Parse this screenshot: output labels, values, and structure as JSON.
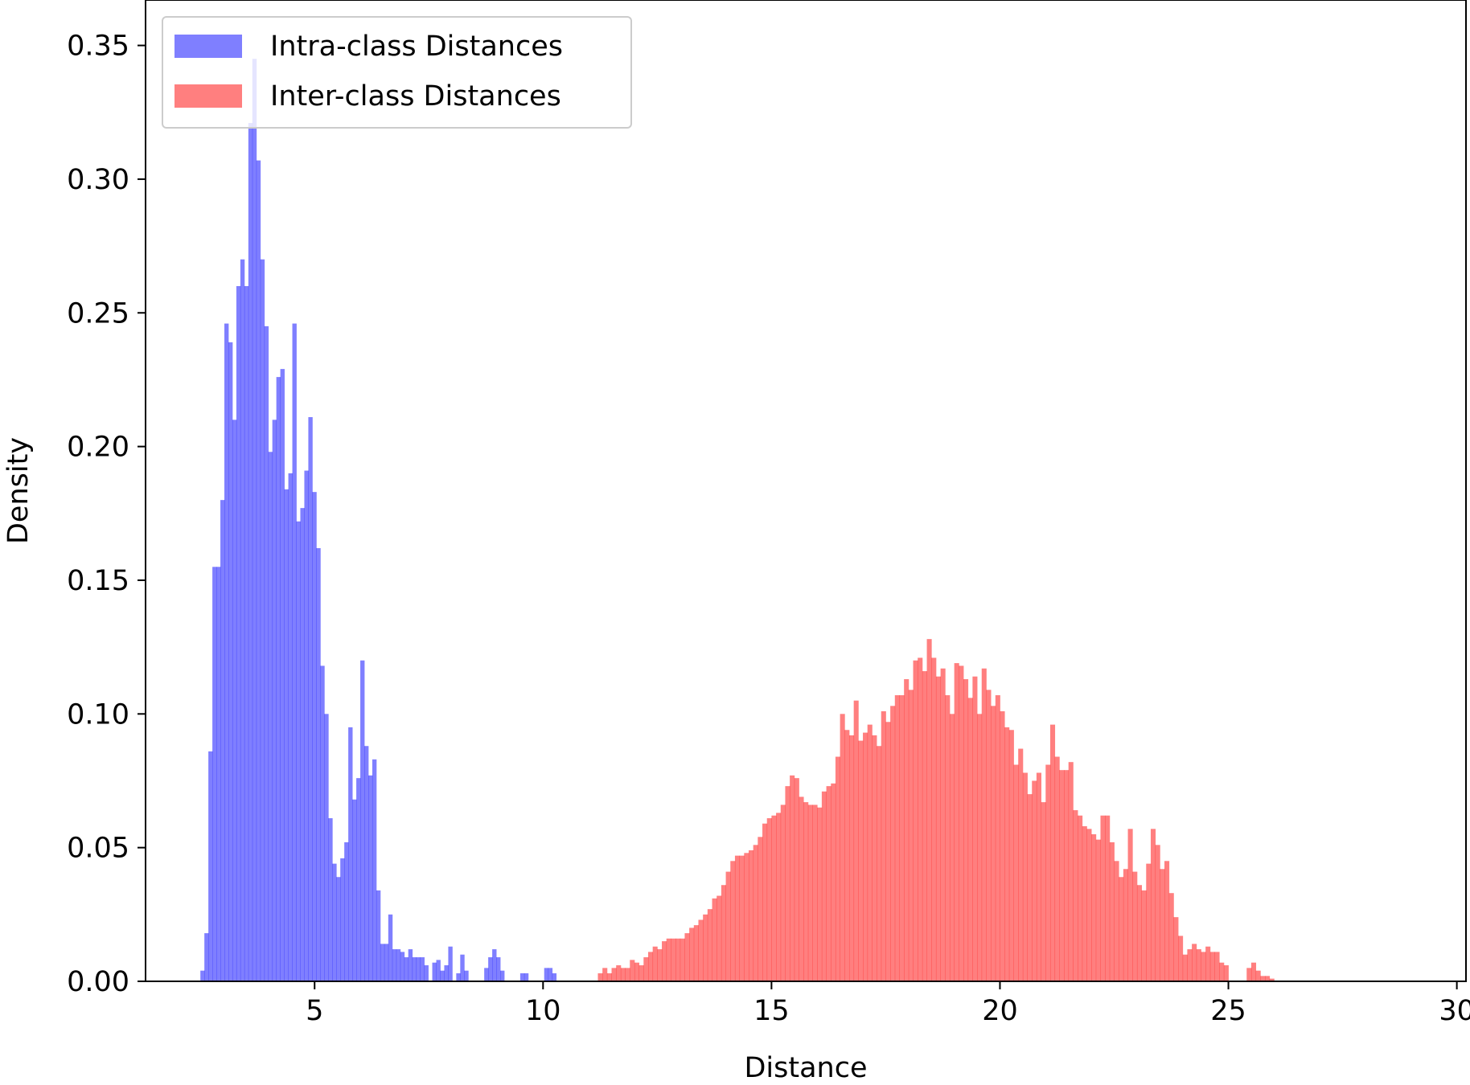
{
  "chart_data": {
    "type": "bar",
    "title": "",
    "xlabel": "Distance",
    "ylabel": "Density",
    "xlim": [
      1.3,
      30.2
    ],
    "ylim": [
      0.0,
      0.367
    ],
    "x_ticks": [
      5,
      10,
      15,
      20,
      25,
      30
    ],
    "x_tick_labels": [
      "5",
      "10",
      "15",
      "20",
      "25",
      "30"
    ],
    "y_ticks": [
      0.0,
      0.05,
      0.1,
      0.15,
      0.2,
      0.25,
      0.3,
      0.35
    ],
    "y_tick_labels": [
      "0.00",
      "0.05",
      "0.10",
      "0.15",
      "0.20",
      "0.25",
      "0.30",
      "0.35"
    ],
    "grid": false,
    "legend_position": "top-left",
    "series": [
      {
        "name": "Intra-class Distances",
        "color": "#0000ff",
        "opacity": 0.5,
        "bin_width": 0.0875,
        "bin_start": 2.5,
        "values": [
          0.004,
          0.018,
          0.086,
          0.155,
          0.155,
          0.18,
          0.246,
          0.239,
          0.21,
          0.26,
          0.27,
          0.26,
          0.321,
          0.345,
          0.307,
          0.27,
          0.245,
          0.198,
          0.21,
          0.226,
          0.229,
          0.184,
          0.19,
          0.246,
          0.172,
          0.177,
          0.191,
          0.211,
          0.183,
          0.162,
          0.118,
          0.1,
          0.061,
          0.044,
          0.039,
          0.046,
          0.052,
          0.095,
          0.068,
          0.076,
          0.12,
          0.088,
          0.077,
          0.083,
          0.034,
          0.014,
          0.014,
          0.025,
          0.012,
          0.012,
          0.011,
          0.009,
          0.012,
          0.009,
          0.009,
          0.009,
          0.006,
          0.0,
          0.007,
          0.008,
          0.004,
          0.006,
          0.013,
          0.0,
          0.003,
          0.01,
          0.004,
          0.0,
          0.0,
          0.0,
          0.0,
          0.005,
          0.009,
          0.012,
          0.009,
          0.004,
          0.0,
          0.0,
          0.0,
          0.0,
          0.003,
          0.003,
          0.0,
          0.0,
          0.0,
          0.0,
          0.005,
          0.005,
          0.003
        ]
      },
      {
        "name": "Inter-class Distances",
        "color": "#ff0000",
        "opacity": 0.5,
        "bin_width": 0.1,
        "bin_start": 11.2,
        "values": [
          0.003,
          0.005,
          0.003,
          0.005,
          0.006,
          0.005,
          0.005,
          0.008,
          0.007,
          0.006,
          0.009,
          0.011,
          0.013,
          0.012,
          0.015,
          0.016,
          0.016,
          0.016,
          0.016,
          0.018,
          0.02,
          0.021,
          0.023,
          0.025,
          0.027,
          0.031,
          0.032,
          0.036,
          0.041,
          0.045,
          0.047,
          0.047,
          0.048,
          0.049,
          0.051,
          0.054,
          0.059,
          0.061,
          0.062,
          0.063,
          0.066,
          0.073,
          0.077,
          0.076,
          0.069,
          0.067,
          0.066,
          0.066,
          0.065,
          0.071,
          0.073,
          0.074,
          0.084,
          0.1,
          0.094,
          0.092,
          0.105,
          0.09,
          0.093,
          0.096,
          0.092,
          0.088,
          0.101,
          0.097,
          0.103,
          0.107,
          0.107,
          0.113,
          0.109,
          0.12,
          0.121,
          0.116,
          0.128,
          0.121,
          0.114,
          0.117,
          0.107,
          0.1,
          0.119,
          0.118,
          0.113,
          0.106,
          0.114,
          0.1,
          0.117,
          0.109,
          0.103,
          0.107,
          0.101,
          0.095,
          0.094,
          0.081,
          0.087,
          0.078,
          0.07,
          0.075,
          0.078,
          0.067,
          0.081,
          0.096,
          0.084,
          0.079,
          0.079,
          0.082,
          0.064,
          0.062,
          0.058,
          0.057,
          0.055,
          0.053,
          0.062,
          0.062,
          0.052,
          0.045,
          0.039,
          0.042,
          0.057,
          0.041,
          0.036,
          0.034,
          0.044,
          0.057,
          0.051,
          0.042,
          0.045,
          0.033,
          0.024,
          0.017,
          0.01,
          0.012,
          0.014,
          0.012,
          0.011,
          0.013,
          0.011,
          0.011,
          0.007,
          0.006,
          0.0,
          0.0,
          0.0,
          0.0,
          0.005,
          0.007,
          0.004,
          0.002,
          0.002,
          0.001
        ]
      }
    ]
  }
}
